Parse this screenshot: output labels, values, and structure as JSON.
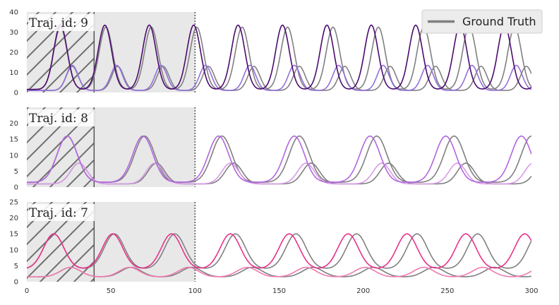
{
  "legend": {
    "label": "Ground Truth",
    "color": "#808080",
    "placement": "top-right"
  },
  "chart_data": {
    "type": "line",
    "shared_x_axis": {
      "xlim": [
        0,
        300
      ],
      "xticks": [
        0,
        50,
        100,
        150,
        200,
        250,
        300
      ]
    },
    "regions": {
      "hatched_context_end": 40,
      "shaded_observed_end": 100
    },
    "panels": [
      {
        "label": "Traj. id: 9",
        "ylim": [
          0,
          40
        ],
        "yticks": [
          0,
          10,
          20,
          30,
          40
        ],
        "colors": {
          "prey": "#4b0a6e",
          "predator": "#9370db"
        },
        "ground_truth": {
          "prey": {
            "first_peak": 20,
            "period": 27,
            "amplitude": 31,
            "width": 4.0,
            "baseline": 1.5
          },
          "predator": {
            "first_peak": 27,
            "period": 27,
            "amplitude": 12,
            "width": 3.5,
            "baseline": 1.0
          }
        },
        "prediction": {
          "prey": {
            "first_peak": 20,
            "period": 26.4,
            "amplitude": 32,
            "width": 4.0,
            "baseline": 1.5
          },
          "predator": {
            "first_peak": 27,
            "period": 26.4,
            "amplitude": 12.5,
            "width": 3.5,
            "baseline": 1.0
          }
        }
      },
      {
        "label": "Traj. id: 8",
        "ylim": [
          0,
          25
        ],
        "yticks": [
          0,
          5,
          10,
          15,
          20
        ],
        "colors": {
          "prey": "#b266e0",
          "predator": "#d89ce8"
        },
        "ground_truth": {
          "prey": {
            "first_peak": 24,
            "period": 46,
            "amplitude": 14.5,
            "width": 6.0,
            "baseline": 1.5
          },
          "predator": {
            "first_peak": 31,
            "period": 46,
            "amplitude": 6.5,
            "width": 5.0,
            "baseline": 1.0
          }
        },
        "prediction": {
          "prey": {
            "first_peak": 24,
            "period": 45,
            "amplitude": 14.5,
            "width": 6.0,
            "baseline": 1.5
          },
          "predator": {
            "first_peak": 31,
            "period": 45,
            "amplitude": 6.5,
            "width": 5.0,
            "baseline": 1.0
          }
        }
      },
      {
        "label": "Traj. id: 7",
        "ylim": [
          0,
          25
        ],
        "yticks": [
          0,
          5,
          10,
          15,
          20,
          25
        ],
        "colors": {
          "prey": "#e8308a",
          "predator": "#f07ab0"
        },
        "ground_truth": {
          "prey": {
            "first_peak": 16,
            "period": 36,
            "amplitude": 11,
            "width": 6.0,
            "baseline": 4.0
          },
          "predator": {
            "first_peak": 26,
            "period": 36,
            "amplitude": 3.0,
            "width": 6.0,
            "baseline": 1.5
          }
        },
        "prediction": {
          "prey": {
            "first_peak": 16,
            "period": 35,
            "amplitude": 11,
            "width": 6.0,
            "baseline": 4.0
          },
          "predator": {
            "first_peak": 26,
            "period": 35,
            "amplitude": 3.0,
            "width": 6.0,
            "baseline": 1.5
          }
        }
      }
    ]
  }
}
